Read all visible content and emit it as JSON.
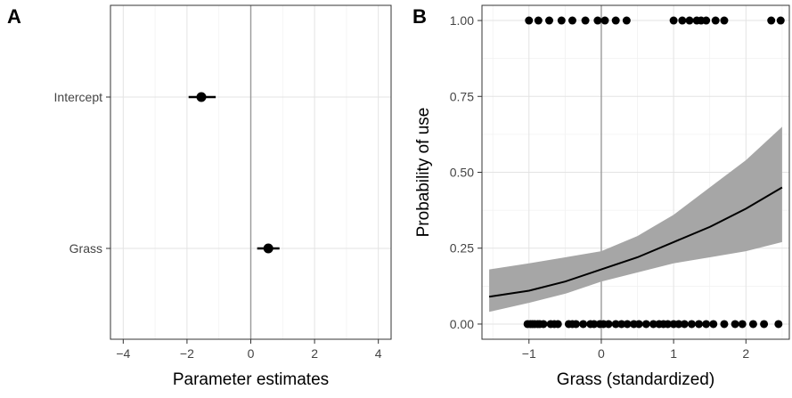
{
  "chart_data": [
    {
      "panel_label": "A",
      "type": "scatter",
      "xlabel": "Parameter estimates",
      "ylabel": "",
      "xlim": [
        -4.4,
        4.4
      ],
      "x_ticks": [
        -4,
        -2,
        0,
        2,
        4
      ],
      "x_tick_labels": [
        "−4",
        "−2",
        "0",
        "2",
        "4"
      ],
      "categories": [
        "Intercept",
        "Grass"
      ],
      "estimates": [
        {
          "term": "Intercept",
          "estimate": -1.55,
          "lower": -1.95,
          "upper": -1.1
        },
        {
          "term": "Grass",
          "estimate": 0.55,
          "lower": 0.2,
          "upper": 0.9
        }
      ],
      "reference_line_x": 0,
      "grid": true
    },
    {
      "panel_label": "B",
      "type": "line",
      "xlabel": "Grass (standardized)",
      "ylabel": "Probability of use",
      "xlim": [
        -1.65,
        2.6
      ],
      "ylim": [
        -0.05,
        1.05
      ],
      "x_ticks": [
        -1,
        0,
        1,
        2
      ],
      "x_tick_labels": [
        "−1",
        "0",
        "1",
        "2"
      ],
      "y_ticks": [
        0,
        0.25,
        0.5,
        0.75,
        1
      ],
      "y_tick_labels": [
        "0.00",
        "0.25",
        "0.50",
        "0.75",
        "1.00"
      ],
      "reference_line_x": 0,
      "grid": true,
      "fitted": {
        "x": [
          -1.55,
          -1,
          -0.5,
          0,
          0.5,
          1,
          1.5,
          2,
          2.5
        ],
        "y": [
          0.09,
          0.11,
          0.14,
          0.18,
          0.22,
          0.27,
          0.32,
          0.38,
          0.45
        ],
        "lower": [
          0.04,
          0.07,
          0.1,
          0.14,
          0.17,
          0.2,
          0.22,
          0.24,
          0.27
        ],
        "upper": [
          0.18,
          0.2,
          0.22,
          0.24,
          0.29,
          0.36,
          0.45,
          0.54,
          0.65
        ]
      },
      "points_y1": [
        -1.0,
        -0.87,
        -0.72,
        -0.55,
        -0.4,
        -0.22,
        -0.05,
        0.05,
        0.2,
        0.35,
        1.0,
        1.12,
        1.22,
        1.32,
        1.38,
        1.45,
        1.58,
        1.7,
        2.35,
        2.48
      ],
      "points_y0": [
        -1.02,
        -0.98,
        -0.95,
        -0.92,
        -0.88,
        -0.85,
        -0.8,
        -0.7,
        -0.65,
        -0.6,
        -0.45,
        -0.4,
        -0.35,
        -0.25,
        -0.15,
        -0.1,
        -0.02,
        0.03,
        0.1,
        0.2,
        0.28,
        0.36,
        0.45,
        0.52,
        0.62,
        0.72,
        0.8,
        0.86,
        0.92,
        1.0,
        1.07,
        1.15,
        1.25,
        1.35,
        1.45,
        1.55,
        1.7,
        1.85,
        1.95,
        2.1,
        2.25,
        2.45
      ]
    }
  ]
}
